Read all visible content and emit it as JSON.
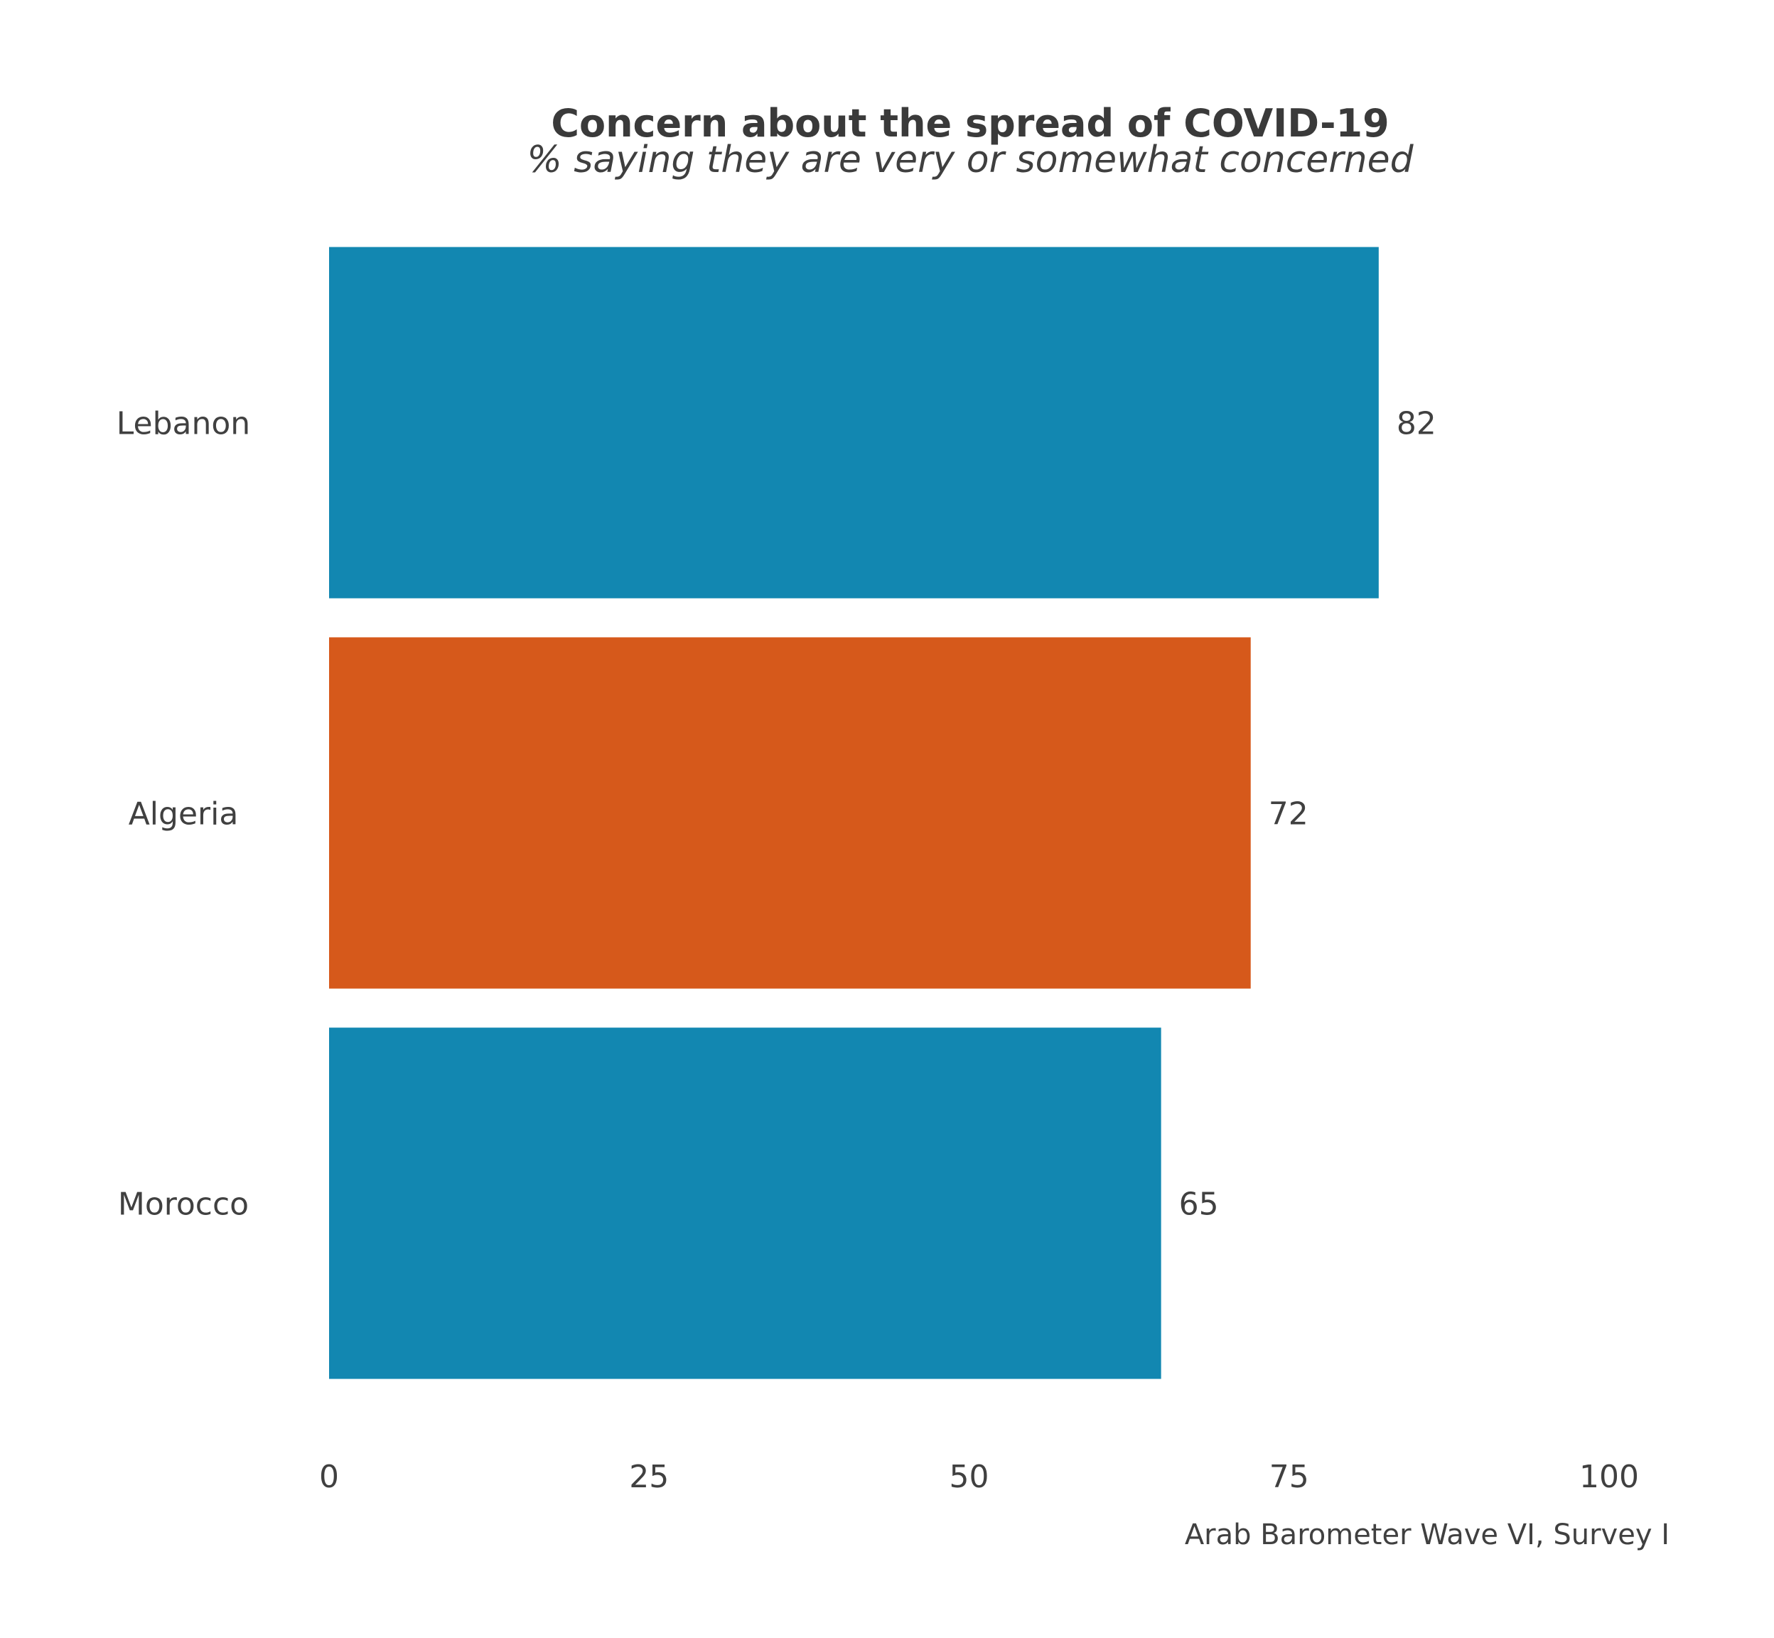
{
  "chart_data": {
    "type": "bar",
    "orientation": "horizontal",
    "title": "Concern about the spread of COVID-19",
    "subtitle": "% saying they are very or somewhat concerned",
    "caption": "Arab Barometer Wave VI, Survey I",
    "categories": [
      "Lebanon",
      "Algeria",
      "Morocco"
    ],
    "values": [
      82,
      72,
      65
    ],
    "data_labels": [
      "82",
      "72",
      "65"
    ],
    "bar_colors": [
      "#1287b1",
      "#d6591b",
      "#1287b1"
    ],
    "xlim": [
      0,
      100
    ],
    "xticks": [
      0,
      25,
      50,
      75,
      100
    ],
    "xtick_labels": [
      "0",
      "25",
      "50",
      "75",
      "100"
    ],
    "xlabel": "",
    "ylabel": "",
    "grid": false,
    "legend": "none"
  }
}
